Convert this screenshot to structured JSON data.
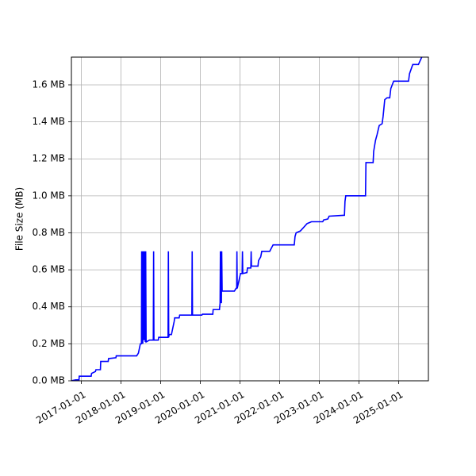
{
  "chart_data": {
    "type": "line",
    "title": "",
    "xlabel": "",
    "ylabel": "File Size (MB)",
    "grid": true,
    "legend": "none",
    "line_color": "#0000ff",
    "x_range": [
      "2016-10-01",
      "2025-10-01"
    ],
    "ylim": [
      0,
      1.75
    ],
    "x_ticks": [
      "2017-01-01",
      "2018-01-01",
      "2019-01-01",
      "2020-01-01",
      "2021-01-01",
      "2022-01-01",
      "2023-01-01",
      "2024-01-01",
      "2025-01-01"
    ],
    "x_tick_labels": [
      "2017-01-01",
      "2018-01-01",
      "2019-01-01",
      "2020-01-01",
      "2021-01-01",
      "2022-01-01",
      "2023-01-01",
      "2024-01-01",
      "2025-01-01"
    ],
    "y_ticks": [
      0,
      0.2,
      0.4,
      0.6,
      0.8,
      1.0,
      1.2,
      1.4,
      1.6
    ],
    "y_tick_labels": [
      "0.0 MB",
      "0.2 MB",
      "0.4 MB",
      "0.6 MB",
      "0.8 MB",
      "1.0 MB",
      "1.2 MB",
      "1.4 MB",
      "1.6 MB"
    ],
    "series": [
      {
        "points": [
          [
            "2016-10-01",
            0.0
          ],
          [
            "2016-11-10",
            0.005
          ],
          [
            "2016-12-10",
            0.005
          ],
          [
            "2016-12-12",
            0.025
          ],
          [
            "2017-04-01",
            0.025
          ],
          [
            "2017-04-05",
            0.04
          ],
          [
            "2017-05-10",
            0.05
          ],
          [
            "2017-05-15",
            0.06
          ],
          [
            "2017-06-25",
            0.06
          ],
          [
            "2017-06-28",
            0.105
          ],
          [
            "2017-09-05",
            0.105
          ],
          [
            "2017-09-08",
            0.12
          ],
          [
            "2017-11-15",
            0.125
          ],
          [
            "2017-11-18",
            0.135
          ],
          [
            "2018-05-25",
            0.135
          ],
          [
            "2018-06-10",
            0.15
          ],
          [
            "2018-06-28",
            0.2
          ],
          [
            "2018-07-08",
            0.2
          ],
          [
            "2018-07-10",
            0.7
          ],
          [
            "2018-07-13",
            0.2
          ],
          [
            "2018-07-17",
            0.7
          ],
          [
            "2018-07-20",
            0.2
          ],
          [
            "2018-07-24",
            0.7
          ],
          [
            "2018-07-28",
            0.22
          ],
          [
            "2018-08-01",
            0.7
          ],
          [
            "2018-08-05",
            0.22
          ],
          [
            "2018-08-08",
            0.7
          ],
          [
            "2018-08-12",
            0.21
          ],
          [
            "2018-08-16",
            0.7
          ],
          [
            "2018-08-20",
            0.21
          ],
          [
            "2018-09-20",
            0.22
          ],
          [
            "2018-10-25",
            0.22
          ],
          [
            "2018-10-28",
            0.7
          ],
          [
            "2018-10-31",
            0.22
          ],
          [
            "2018-12-10",
            0.22
          ],
          [
            "2018-12-14",
            0.235
          ],
          [
            "2019-03-10",
            0.235
          ],
          [
            "2019-03-13",
            0.7
          ],
          [
            "2019-03-16",
            0.235
          ],
          [
            "2019-03-20",
            0.25
          ],
          [
            "2019-04-10",
            0.25
          ],
          [
            "2019-05-05",
            0.32
          ],
          [
            "2019-05-10",
            0.34
          ],
          [
            "2019-06-20",
            0.34
          ],
          [
            "2019-06-25",
            0.355
          ],
          [
            "2019-10-15",
            0.355
          ],
          [
            "2019-10-18",
            0.7
          ],
          [
            "2019-10-21",
            0.355
          ],
          [
            "2020-01-15",
            0.355
          ],
          [
            "2020-01-20",
            0.36
          ],
          [
            "2020-04-25",
            0.36
          ],
          [
            "2020-04-28",
            0.385
          ],
          [
            "2020-06-25",
            0.385
          ],
          [
            "2020-07-01",
            0.42
          ],
          [
            "2020-07-04",
            0.7
          ],
          [
            "2020-07-07",
            0.42
          ],
          [
            "2020-07-10",
            0.7
          ],
          [
            "2020-07-13",
            0.42
          ],
          [
            "2020-07-16",
            0.7
          ],
          [
            "2020-07-20",
            0.485
          ],
          [
            "2020-11-10",
            0.485
          ],
          [
            "2020-11-25",
            0.5
          ],
          [
            "2020-12-01",
            0.5
          ],
          [
            "2020-12-03",
            0.7
          ],
          [
            "2020-12-06",
            0.5
          ],
          [
            "2021-01-05",
            0.58
          ],
          [
            "2021-01-20",
            0.58
          ],
          [
            "2021-01-23",
            0.7
          ],
          [
            "2021-01-26",
            0.58
          ],
          [
            "2021-03-05",
            0.585
          ],
          [
            "2021-03-10",
            0.61
          ],
          [
            "2021-04-10",
            0.61
          ],
          [
            "2021-04-13",
            0.7
          ],
          [
            "2021-04-16",
            0.62
          ],
          [
            "2021-06-15",
            0.62
          ],
          [
            "2021-06-20",
            0.65
          ],
          [
            "2021-07-10",
            0.67
          ],
          [
            "2021-07-20",
            0.7
          ],
          [
            "2021-10-01",
            0.7
          ],
          [
            "2021-11-01",
            0.735
          ],
          [
            "2022-05-15",
            0.735
          ],
          [
            "2022-05-22",
            0.78
          ],
          [
            "2022-06-01",
            0.8
          ],
          [
            "2022-07-10",
            0.81
          ],
          [
            "2022-09-10",
            0.85
          ],
          [
            "2022-10-20",
            0.86
          ],
          [
            "2023-02-01",
            0.86
          ],
          [
            "2023-02-10",
            0.87
          ],
          [
            "2023-03-20",
            0.875
          ],
          [
            "2023-04-01",
            0.89
          ],
          [
            "2023-08-20",
            0.895
          ],
          [
            "2023-08-25",
            0.97
          ],
          [
            "2023-09-01",
            1.0
          ],
          [
            "2024-03-01",
            1.0
          ],
          [
            "2024-03-05",
            1.18
          ],
          [
            "2024-05-10",
            1.18
          ],
          [
            "2024-05-15",
            1.24
          ],
          [
            "2024-06-01",
            1.3
          ],
          [
            "2024-06-15",
            1.33
          ],
          [
            "2024-07-05",
            1.38
          ],
          [
            "2024-08-01",
            1.39
          ],
          [
            "2024-08-10",
            1.43
          ],
          [
            "2024-08-25",
            1.52
          ],
          [
            "2024-09-15",
            1.53
          ],
          [
            "2024-10-10",
            1.53
          ],
          [
            "2024-10-20",
            1.58
          ],
          [
            "2024-11-15",
            1.62
          ],
          [
            "2025-04-01",
            1.62
          ],
          [
            "2025-04-10",
            1.66
          ],
          [
            "2025-05-10",
            1.71
          ],
          [
            "2025-07-01",
            1.71
          ],
          [
            "2025-08-01",
            1.75
          ]
        ]
      }
    ]
  }
}
